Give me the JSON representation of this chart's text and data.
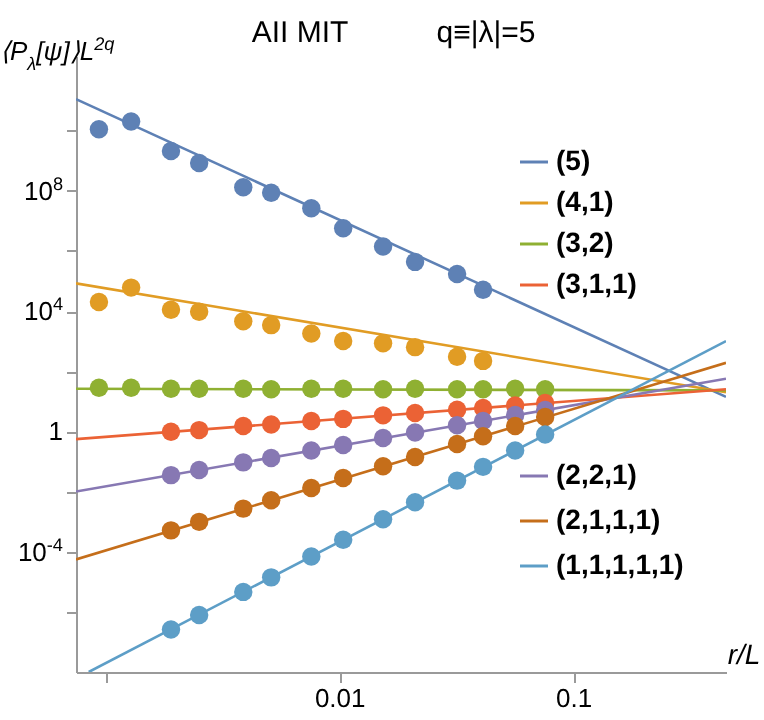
{
  "chart_data": {
    "type": "scatter",
    "title": "AII MIT",
    "subtitle": "q≡|λ|=5",
    "xlabel": "r/L",
    "ylabel": "⟨P$_{λ}$[ψ]⟩L$^{2q}$",
    "log": "xy",
    "xlim": [
      0.00075,
      0.45
    ],
    "ylim": [
      1e-08,
      3000000000000.0
    ],
    "xticks": [
      {
        "value": 0.001,
        "label": null
      },
      0.01,
      0.1
    ],
    "yticks": [
      {
        "value": 10000000000.0,
        "label": null
      },
      {
        "value": 100000000.0,
        "label": "10$^{8}$"
      },
      {
        "value": 1000000.0,
        "label": null
      },
      {
        "value": 10000.0,
        "label": "10$^{4}$"
      },
      {
        "value": 100,
        "label": null
      },
      1,
      {
        "value": 0.01,
        "label": null
      },
      {
        "value": 0.0001,
        "label": "10$^{-4}$"
      },
      {
        "value": 1e-06,
        "label": null
      }
    ],
    "legend": "right",
    "series": [
      {
        "type": "line",
        "name": "(5)",
        "color": "#5e81b5",
        "x": [
          0.00075,
          0.45
        ],
        "values": [
          110000000000.0,
          14
        ]
      },
      {
        "type": "line",
        "name": "(4,1)",
        "color": "#e19c24",
        "x": [
          0.00075,
          0.45
        ],
        "values": [
          83000,
          20
        ]
      },
      {
        "type": "line",
        "name": "(3,2)",
        "color": "#8fb032",
        "x": [
          0.00075,
          0.45
        ],
        "values": [
          26,
          23
        ]
      },
      {
        "type": "line",
        "name": "(3,1,1)",
        "color": "#eb6235",
        "x": [
          0.00075,
          0.45
        ],
        "values": [
          0.55,
          25
        ]
      },
      {
        "type": "line",
        "name": "(2,2,1)",
        "color": "#8778b3",
        "x": [
          0.00075,
          0.45
        ],
        "values": [
          0.01,
          56
        ]
      },
      {
        "type": "line",
        "name": "(2,1,1,1)",
        "color": "#c56e1a",
        "x": [
          0.00075,
          0.45
        ],
        "values": [
          5.5e-05,
          190
        ]
      },
      {
        "type": "line",
        "name": "(1,1,1,1,1)",
        "color": "#5d9ec7",
        "x": [
          0.00085,
          0.45
        ],
        "values": [
          1e-08,
          1000
        ]
      },
      {
        "color": "#5e81b5",
        "x": [
          0.00094,
          0.00129,
          0.00191,
          0.00252,
          0.00389,
          0.00512,
          0.0076,
          0.0104,
          0.0154,
          0.0211,
          0.0319,
          0.0412
        ],
        "values": [
          11000000000.0,
          20000000000.0,
          2100000000.0,
          830000000.0,
          130000000.0,
          85000000.0,
          26000000.0,
          5600000.0,
          1400000.0,
          430000.0,
          170000.0,
          51000.0
        ]
      },
      {
        "color": "#e19c24",
        "x": [
          0.00094,
          0.00129,
          0.00191,
          0.00252,
          0.00389,
          0.00512,
          0.0076,
          0.0104,
          0.0154,
          0.0211,
          0.0319,
          0.0412
        ],
        "values": [
          20000,
          60000,
          11000,
          9500,
          4600,
          3400,
          1800,
          1000,
          850,
          630,
          300,
          220
        ]
      },
      {
        "color": "#8fb032",
        "x": [
          0.00094,
          0.00129,
          0.00191,
          0.00252,
          0.00389,
          0.00512,
          0.0076,
          0.0104,
          0.0154,
          0.0211,
          0.0319,
          0.0412,
          0.0565,
          0.0759
        ],
        "values": [
          28,
          28,
          26,
          26,
          26,
          25,
          26,
          26,
          25,
          26,
          25,
          25,
          26,
          25
        ]
      },
      {
        "color": "#eb6235",
        "x": [
          0.00191,
          0.00252,
          0.00389,
          0.00512,
          0.0076,
          0.0104,
          0.0154,
          0.0211,
          0.0319,
          0.0412,
          0.0565,
          0.0759
        ],
        "values": [
          0.97,
          1.1,
          1.5,
          1.7,
          2.2,
          2.6,
          3.4,
          4.1,
          5.2,
          6.0,
          7.2,
          8.7
        ]
      },
      {
        "color": "#8778b3",
        "x": [
          0.00191,
          0.00252,
          0.00389,
          0.00512,
          0.0076,
          0.0104,
          0.0154,
          0.0211,
          0.0319,
          0.0412,
          0.0565,
          0.0759
        ],
        "values": [
          0.035,
          0.052,
          0.093,
          0.13,
          0.23,
          0.35,
          0.6,
          0.91,
          1.6,
          2.2,
          3.5,
          5.1
        ]
      },
      {
        "color": "#c56e1a",
        "x": [
          0.00191,
          0.00252,
          0.00389,
          0.00512,
          0.0076,
          0.0104,
          0.0154,
          0.0211,
          0.0319,
          0.0412,
          0.0565,
          0.0759
        ],
        "values": [
          0.00051,
          0.00098,
          0.0027,
          0.0051,
          0.013,
          0.028,
          0.069,
          0.14,
          0.38,
          0.69,
          1.5,
          3.0
        ]
      },
      {
        "color": "#5d9ec7",
        "x": [
          0.00191,
          0.00252,
          0.00389,
          0.00512,
          0.0076,
          0.0104,
          0.0154,
          0.0211,
          0.0319,
          0.0412,
          0.0565,
          0.0759
        ],
        "values": [
          2.6e-07,
          7.9e-07,
          4.6e-06,
          1.4e-05,
          6.9e-05,
          0.00025,
          0.0012,
          0.0044,
          0.023,
          0.066,
          0.23,
          0.78
        ]
      }
    ]
  }
}
